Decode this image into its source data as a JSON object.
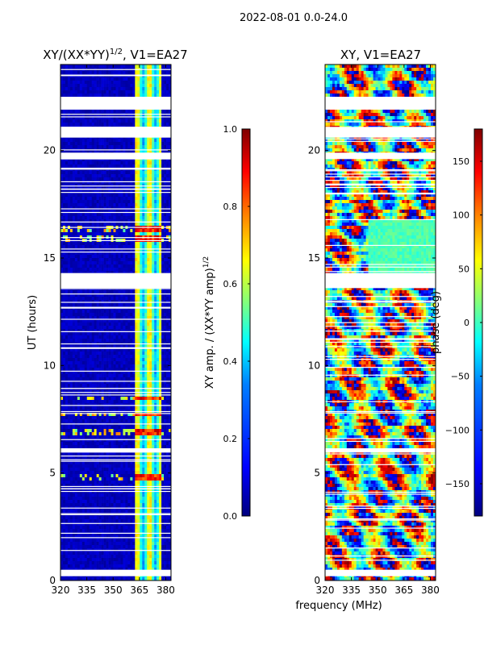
{
  "figure": {
    "suptitle": "2022-08-01 0.0-24.0",
    "shared_xlabel": "frequency (MHz)"
  },
  "colormap": {
    "name": "jet",
    "stops": [
      "#00007f",
      "#0000ff",
      "#007fff",
      "#00ffff",
      "#7fff7f",
      "#ffff00",
      "#ff7f00",
      "#ff0000",
      "#7f0000"
    ]
  },
  "chart_data": [
    {
      "type": "heatmap",
      "title": "XY/(XX*YY)",
      "title_exponent": "1/2",
      "title_suffix": ", V1=EA27",
      "xlabel": "",
      "ylabel": "UT (hours)",
      "xlim": [
        320,
        383
      ],
      "ylim": [
        0,
        24
      ],
      "xticks": [
        320,
        335,
        350,
        365,
        380
      ],
      "yticks": [
        0,
        5,
        10,
        15,
        20
      ],
      "colorbar": {
        "label": "XY amp. / (XX*YY amp)",
        "label_exponent": "1/2",
        "range": [
          0.0,
          1.0
        ],
        "ticks": [
          0.0,
          0.2,
          0.4,
          0.6,
          0.8,
          1.0
        ],
        "tick_labels": [
          "0.0",
          "0.2",
          "0.4",
          "0.6",
          "0.8",
          "1.0"
        ]
      },
      "blank_ut_bands": [
        [
          0.2,
          0.5
        ],
        [
          13.6,
          14.3
        ],
        [
          20.6,
          21.1
        ],
        [
          21.9,
          22.5
        ],
        [
          19.6,
          19.9
        ],
        [
          5.95,
          6.15
        ]
      ],
      "bright_ut_bands": [
        [
          16.2,
          16.5
        ],
        [
          15.8,
          16.0
        ],
        [
          8.4,
          8.6
        ],
        [
          7.6,
          7.8
        ],
        [
          4.7,
          4.9
        ],
        [
          6.8,
          7.0
        ]
      ],
      "signal_freq_mhz": [
        362,
        378
      ]
    },
    {
      "type": "heatmap",
      "title": "XY, V1=EA27",
      "xlabel": "",
      "ylabel": "",
      "xlim": [
        320,
        383
      ],
      "ylim": [
        0,
        24
      ],
      "xticks": [
        320,
        335,
        350,
        365,
        380
      ],
      "yticks": [
        0,
        5,
        10,
        15,
        20
      ],
      "colorbar": {
        "label": "phase (deg)",
        "range": [
          -180,
          180
        ],
        "ticks": [
          -150,
          -100,
          -50,
          0,
          50,
          100,
          150
        ],
        "tick_labels": [
          "−150",
          "−100",
          "−50",
          "0",
          "50",
          "100",
          "150"
        ]
      },
      "blank_ut_bands": [
        [
          0.2,
          0.5
        ],
        [
          13.6,
          14.3
        ],
        [
          20.6,
          21.1
        ],
        [
          21.9,
          22.5
        ],
        [
          19.6,
          19.9
        ],
        [
          5.95,
          6.15
        ]
      ]
    }
  ]
}
